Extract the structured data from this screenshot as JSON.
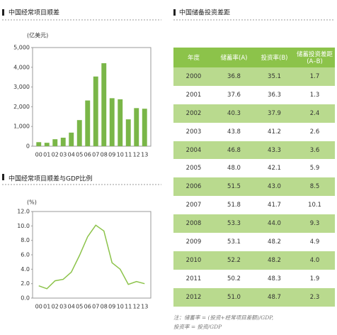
{
  "chart_data": [
    {
      "type": "bar",
      "title": "中国经常项目顺差",
      "y_label": "(亿美元)",
      "categories": [
        "00",
        "01",
        "02",
        "03",
        "04",
        "05",
        "06",
        "07",
        "08",
        "09",
        "10",
        "11",
        "12",
        "13"
      ],
      "values": [
        205,
        174,
        354,
        431,
        689,
        1324,
        2318,
        3532,
        4206,
        2433,
        2378,
        1361,
        1931,
        1900
      ],
      "color": "#7ab648",
      "ylim": [
        0,
        5000
      ],
      "yticks": [
        0,
        {
          "value": 1000,
          "label": "1,000"
        },
        {
          "value": 2000,
          "label": "2,000"
        },
        {
          "value": 3000,
          "label": "3,000"
        },
        {
          "value": 4000,
          "label": "4,000"
        },
        {
          "value": 5000,
          "label": "5,000"
        }
      ]
    },
    {
      "type": "line",
      "title": "中国经常项目顺差与GDP比例",
      "y_label": "(%)",
      "categories": [
        "00",
        "01",
        "02",
        "03",
        "04",
        "05",
        "06",
        "07",
        "08",
        "09",
        "10",
        "11",
        "12",
        "13"
      ],
      "values": [
        1.7,
        1.3,
        2.4,
        2.6,
        3.6,
        5.9,
        8.5,
        10.1,
        9.3,
        4.9,
        4.0,
        1.9,
        2.3,
        2.0
      ],
      "color": "#8cc34a",
      "ylim": [
        0,
        12
      ],
      "yticks": [
        {
          "value": 0,
          "label": "0.0"
        },
        {
          "value": 2,
          "label": "2.0"
        },
        {
          "value": 4,
          "label": "4.0"
        },
        {
          "value": 6,
          "label": "6.0"
        },
        {
          "value": 8,
          "label": "8.0"
        },
        {
          "value": 10,
          "label": "10.0"
        },
        {
          "value": 12,
          "label": "12.0"
        }
      ]
    }
  ],
  "table": {
    "title": "中国储备投资差距",
    "header": [
      "年度",
      "储蓄率(A)",
      "投资率(B)",
      "储蓄投资差距(A–B)"
    ],
    "rows": [
      [
        "2000",
        "36.8",
        "35.1",
        "1.7"
      ],
      [
        "2001",
        "37.6",
        "36.3",
        "1.3"
      ],
      [
        "2002",
        "40.3",
        "37.9",
        "2.4"
      ],
      [
        "2003",
        "43.8",
        "41.2",
        "2.6"
      ],
      [
        "2004",
        "46.8",
        "43.3",
        "3.6"
      ],
      [
        "2005",
        "48.0",
        "42.1",
        "5.9"
      ],
      [
        "2006",
        "51.5",
        "43.0",
        "8.5"
      ],
      [
        "2007",
        "51.8",
        "41.7",
        "10.1"
      ],
      [
        "2008",
        "53.3",
        "44.0",
        "9.3"
      ],
      [
        "2009",
        "53.1",
        "48.2",
        "4.9"
      ],
      [
        "2010",
        "52.2",
        "48.2",
        "4.0"
      ],
      [
        "2011",
        "50.2",
        "48.3",
        "1.9"
      ],
      [
        "2012",
        "51.0",
        "48.7",
        "2.3"
      ]
    ],
    "notes": [
      "注：储蓄率 = (投资+经常项目差额)/GDP,",
      "投资率 = 投资/GDP"
    ]
  }
}
